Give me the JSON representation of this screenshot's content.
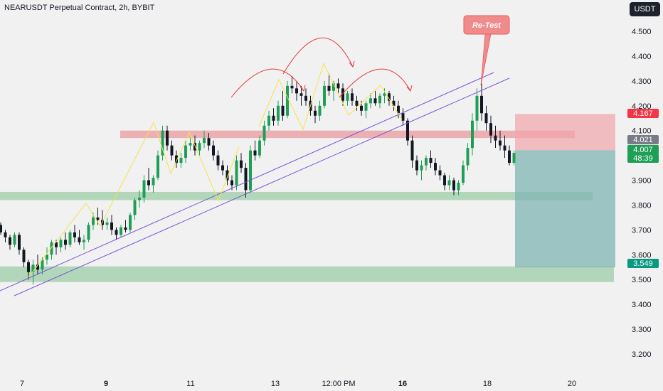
{
  "title": "NEARUSDT Perpetual Contract, 2h, BYBIT",
  "currency": "USDT",
  "colors": {
    "background": "#f1f1f1",
    "up": "#1f9e55",
    "down": "#131722",
    "zone_red": "#e6868c",
    "zone_green": "#88c596",
    "target_box": "#7fb4b1",
    "stop_box": "#f1a5ab",
    "channel": "#7b54d6",
    "pattern": "#f5e34c",
    "arrow": "#e33b3b"
  },
  "chart_data": {
    "type": "candlestick",
    "symbol": "NEARUSDT",
    "interval": "2h",
    "exchange": "BYBIT",
    "y_ticks": [
      4.5,
      4.4,
      4.3,
      4.2,
      4.1,
      4.0,
      3.9,
      3.8,
      3.7,
      3.6,
      3.5,
      3.4,
      3.3,
      3.2
    ],
    "y_tick_labels": [
      "4.500",
      "4.400",
      "4.300",
      "4.200",
      "4.100",
      "4.000",
      "3.900",
      "3.800",
      "3.700",
      "3.600",
      "3.500",
      "3.400",
      "3.300",
      "3.200"
    ],
    "x_ticks": [
      {
        "label": "7",
        "bold": false
      },
      {
        "label": "9",
        "bold": true
      },
      {
        "label": "11",
        "bold": false
      },
      {
        "label": "13",
        "bold": false
      },
      {
        "label": "12:00 PM",
        "bold": false
      },
      {
        "label": "16",
        "bold": true
      },
      {
        "label": "18",
        "bold": false
      },
      {
        "label": "20",
        "bold": false
      }
    ],
    "price_tags": [
      {
        "label": "4.167",
        "value": 4.167,
        "color": "#f23645"
      },
      {
        "label": "4.021",
        "value": 4.021,
        "color": "#787b86"
      },
      {
        "label": "4.007",
        "value": 4.007,
        "color": "#1f9e55"
      },
      {
        "label": "48:39",
        "value": 3.99,
        "color": "#1f9e55"
      },
      {
        "label": "3.549",
        "value": 3.549,
        "color": "#089981"
      }
    ],
    "zones": [
      {
        "kind": "resistance",
        "top": 4.1,
        "bottom": 4.07
      },
      {
        "kind": "support",
        "top": 3.853,
        "bottom": 3.82
      },
      {
        "kind": "support",
        "top": 3.553,
        "bottom": 3.49
      }
    ],
    "position": {
      "entry": 4.021,
      "stop": 4.167,
      "target": 3.549
    },
    "annotation": {
      "text": "Re-Test"
    },
    "candles": [
      [
        3.72,
        3.73,
        3.68,
        3.69
      ],
      [
        3.69,
        3.7,
        3.65,
        3.67
      ],
      [
        3.67,
        3.68,
        3.62,
        3.64
      ],
      [
        3.64,
        3.69,
        3.63,
        3.68
      ],
      [
        3.68,
        3.69,
        3.6,
        3.62
      ],
      [
        3.62,
        3.63,
        3.55,
        3.57
      ],
      [
        3.57,
        3.58,
        3.5,
        3.53
      ],
      [
        3.53,
        3.58,
        3.48,
        3.56
      ],
      [
        3.56,
        3.6,
        3.52,
        3.54
      ],
      [
        3.54,
        3.59,
        3.52,
        3.58
      ],
      [
        3.58,
        3.63,
        3.56,
        3.6
      ],
      [
        3.6,
        3.66,
        3.58,
        3.65
      ],
      [
        3.65,
        3.66,
        3.6,
        3.63
      ],
      [
        3.63,
        3.67,
        3.61,
        3.66
      ],
      [
        3.66,
        3.69,
        3.62,
        3.64
      ],
      [
        3.64,
        3.7,
        3.63,
        3.69
      ],
      [
        3.69,
        3.72,
        3.65,
        3.67
      ],
      [
        3.67,
        3.7,
        3.64,
        3.65
      ],
      [
        3.65,
        3.68,
        3.62,
        3.66
      ],
      [
        3.66,
        3.73,
        3.65,
        3.72
      ],
      [
        3.72,
        3.77,
        3.7,
        3.75
      ],
      [
        3.75,
        3.79,
        3.72,
        3.74
      ],
      [
        3.74,
        3.78,
        3.7,
        3.72
      ],
      [
        3.72,
        3.75,
        3.7,
        3.73
      ],
      [
        3.73,
        3.76,
        3.68,
        3.7
      ],
      [
        3.7,
        3.71,
        3.66,
        3.68
      ],
      [
        3.68,
        3.72,
        3.67,
        3.71
      ],
      [
        3.71,
        3.74,
        3.69,
        3.7
      ],
      [
        3.7,
        3.77,
        3.69,
        3.76
      ],
      [
        3.76,
        3.83,
        3.74,
        3.82
      ],
      [
        3.82,
        3.86,
        3.79,
        3.83
      ],
      [
        3.83,
        3.92,
        3.81,
        3.9
      ],
      [
        3.9,
        3.95,
        3.86,
        3.88
      ],
      [
        3.88,
        3.92,
        3.85,
        3.91
      ],
      [
        3.91,
        4.02,
        3.9,
        4.0
      ],
      [
        4.0,
        4.12,
        3.98,
        4.1
      ],
      [
        4.1,
        4.12,
        4.02,
        4.04
      ],
      [
        4.04,
        4.06,
        3.98,
        4.0
      ],
      [
        4.0,
        4.02,
        3.95,
        3.97
      ],
      [
        3.97,
        4.01,
        3.95,
        3.99
      ],
      [
        3.99,
        4.06,
        3.97,
        4.04
      ],
      [
        4.04,
        4.07,
        4.02,
        4.05
      ],
      [
        4.05,
        4.08,
        4.0,
        4.02
      ],
      [
        4.02,
        4.06,
        4.0,
        4.05
      ],
      [
        4.05,
        4.1,
        4.03,
        4.07
      ],
      [
        4.07,
        4.09,
        4.02,
        4.04
      ],
      [
        4.04,
        4.06,
        3.98,
        4.0
      ],
      [
        4.0,
        4.02,
        3.94,
        3.96
      ],
      [
        3.96,
        3.98,
        3.92,
        3.94
      ],
      [
        3.94,
        3.96,
        3.88,
        3.9
      ],
      [
        3.9,
        3.92,
        3.86,
        3.88
      ],
      [
        3.88,
        4.0,
        3.86,
        3.98
      ],
      [
        3.98,
        4.01,
        3.93,
        3.95
      ],
      [
        3.95,
        3.97,
        3.83,
        3.86
      ],
      [
        3.86,
        4.04,
        3.85,
        4.02
      ],
      [
        4.02,
        4.06,
        3.98,
        4.0
      ],
      [
        4.0,
        4.08,
        3.99,
        4.06
      ],
      [
        4.06,
        4.14,
        4.04,
        4.12
      ],
      [
        4.12,
        4.18,
        4.1,
        4.16
      ],
      [
        4.16,
        4.19,
        4.12,
        4.14
      ],
      [
        4.14,
        4.22,
        4.12,
        4.2
      ],
      [
        4.2,
        4.26,
        4.14,
        4.16
      ],
      [
        4.16,
        4.3,
        4.15,
        4.28
      ],
      [
        4.28,
        4.32,
        4.25,
        4.27
      ],
      [
        4.27,
        4.3,
        4.22,
        4.25
      ],
      [
        4.25,
        4.28,
        4.2,
        4.24
      ],
      [
        4.24,
        4.27,
        4.2,
        4.22
      ],
      [
        4.22,
        4.24,
        4.16,
        4.18
      ],
      [
        4.18,
        4.2,
        4.13,
        4.16
      ],
      [
        4.16,
        4.22,
        4.14,
        4.2
      ],
      [
        4.2,
        4.3,
        4.19,
        4.28
      ],
      [
        4.28,
        4.33,
        4.24,
        4.26
      ],
      [
        4.26,
        4.3,
        4.22,
        4.29
      ],
      [
        4.29,
        4.31,
        4.25,
        4.27
      ],
      [
        4.27,
        4.29,
        4.2,
        4.22
      ],
      [
        4.22,
        4.26,
        4.2,
        4.25
      ],
      [
        4.25,
        4.27,
        4.2,
        4.22
      ],
      [
        4.22,
        4.24,
        4.18,
        4.2
      ],
      [
        4.2,
        4.22,
        4.16,
        4.18
      ],
      [
        4.18,
        4.22,
        4.15,
        4.21
      ],
      [
        4.21,
        4.25,
        4.19,
        4.23
      ],
      [
        4.23,
        4.26,
        4.2,
        4.21
      ],
      [
        4.21,
        4.25,
        4.19,
        4.24
      ],
      [
        4.24,
        4.27,
        4.21,
        4.25
      ],
      [
        4.25,
        4.26,
        4.2,
        4.22
      ],
      [
        4.22,
        4.24,
        4.18,
        4.2
      ],
      [
        4.2,
        4.22,
        4.15,
        4.17
      ],
      [
        4.17,
        4.19,
        4.12,
        4.14
      ],
      [
        4.14,
        4.15,
        4.04,
        4.06
      ],
      [
        4.06,
        4.08,
        3.95,
        3.98
      ],
      [
        3.98,
        4.0,
        3.92,
        3.94
      ],
      [
        3.94,
        3.98,
        3.9,
        3.96
      ],
      [
        3.96,
        4.0,
        3.94,
        3.99
      ],
      [
        3.99,
        4.02,
        3.95,
        3.97
      ],
      [
        3.97,
        3.99,
        3.92,
        3.94
      ],
      [
        3.94,
        3.96,
        3.9,
        3.92
      ],
      [
        3.92,
        3.93,
        3.86,
        3.88
      ],
      [
        3.88,
        3.92,
        3.86,
        3.9
      ],
      [
        3.9,
        3.91,
        3.84,
        3.86
      ],
      [
        3.86,
        3.9,
        3.84,
        3.89
      ],
      [
        3.89,
        3.98,
        3.88,
        3.96
      ],
      [
        3.96,
        4.05,
        3.94,
        4.03
      ],
      [
        4.03,
        4.17,
        4.0,
        4.14
      ],
      [
        4.14,
        4.27,
        4.1,
        4.24
      ],
      [
        4.24,
        4.29,
        4.14,
        4.17
      ],
      [
        4.17,
        4.2,
        4.1,
        4.13
      ],
      [
        4.13,
        4.16,
        4.05,
        4.08
      ],
      [
        4.08,
        4.12,
        4.03,
        4.06
      ],
      [
        4.06,
        4.1,
        4.02,
        4.04
      ],
      [
        4.04,
        4.08,
        3.99,
        4.02
      ],
      [
        4.02,
        4.04,
        3.96,
        3.97
      ],
      [
        3.97,
        4.02,
        3.96,
        4.01
      ]
    ]
  }
}
